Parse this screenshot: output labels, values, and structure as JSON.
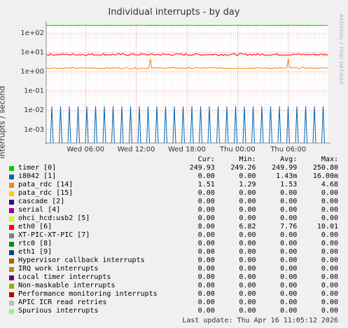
{
  "title": "Individual interrupts - by day",
  "ylabel": "interrupts / second",
  "watermark": "RRDTOOL / TOBI OETIKER",
  "legend_headers": {
    "cur": "Cur:",
    "min": "Min:",
    "avg": "Avg:",
    "max": "Max:"
  },
  "last_update": "Last update: Thu Apr 16 11:05:12 2026",
  "chart_data": {
    "type": "line",
    "title": "Individual interrupts - by day",
    "ylabel": "interrupts / second",
    "yscale": "log",
    "ylim": [
      0.0002,
      300
    ],
    "yticks": [
      "1e+02",
      "1e+01",
      "1e+00",
      "1e-01",
      "1e-02",
      "1e-03"
    ],
    "yticks_values": [
      100,
      10,
      1,
      0.1,
      0.01,
      0.001
    ],
    "xticks": [
      "Wed 06:00",
      "Wed 12:00",
      "Wed 18:00",
      "Thu 00:00",
      "Thu 06:00"
    ],
    "grid": true,
    "series": [
      {
        "name": "timer [0]",
        "color": "#00cc00",
        "cur": "249.93",
        "min": "249.26",
        "avg": "249.99",
        "max": "250.80",
        "level": 250
      },
      {
        "name": "i8042 [1]",
        "color": "#0066b3",
        "cur": "0.00",
        "min": "0.00",
        "avg": "1.43m",
        "max": "16.00m",
        "level": 0.016
      },
      {
        "name": "pata_rdc [14]",
        "color": "#ff8000",
        "cur": "1.51",
        "min": "1.29",
        "avg": "1.53",
        "max": "4.68",
        "level": 1.53
      },
      {
        "name": "pata_rdc [15]",
        "color": "#ffcc00",
        "cur": "0.00",
        "min": "0.00",
        "avg": "0.00",
        "max": "0.00"
      },
      {
        "name": "cascade [2]",
        "color": "#330099",
        "cur": "0.00",
        "min": "0.00",
        "avg": "0.00",
        "max": "0.00"
      },
      {
        "name": "serial [4]",
        "color": "#990099",
        "cur": "0.00",
        "min": "0.00",
        "avg": "0.00",
        "max": "0.00"
      },
      {
        "name": "ohci_hcd:usb2 [5]",
        "color": "#ccff00",
        "cur": "0.00",
        "min": "0.00",
        "avg": "0.00",
        "max": "0.00"
      },
      {
        "name": "eth0 [6]",
        "color": "#ff0000",
        "cur": "8.00",
        "min": "6.82",
        "avg": "7.76",
        "max": "10.01",
        "level": 7.76
      },
      {
        "name": "XT-PIC-XT-PIC [7]",
        "color": "#808080",
        "cur": "0.00",
        "min": "0.00",
        "avg": "0.00",
        "max": "0.00"
      },
      {
        "name": "rtc0 [8]",
        "color": "#008f00",
        "cur": "0.00",
        "min": "0.00",
        "avg": "0.00",
        "max": "0.00"
      },
      {
        "name": "eth1 [9]",
        "color": "#00487d",
        "cur": "0.00",
        "min": "0.00",
        "avg": "0.00",
        "max": "0.00"
      },
      {
        "name": "Hypervisor callback interrupts",
        "color": "#b35a00",
        "cur": "0.00",
        "min": "0.00",
        "avg": "0.00",
        "max": "0.00"
      },
      {
        "name": "IRQ work interrupts",
        "color": "#b38f00",
        "cur": "0.00",
        "min": "0.00",
        "avg": "0.00",
        "max": "0.00"
      },
      {
        "name": "Local timer interrupts",
        "color": "#6b006b",
        "cur": "0.00",
        "min": "0.00",
        "avg": "0.00",
        "max": "0.00"
      },
      {
        "name": "Non-maskable interrupts",
        "color": "#8fb300",
        "cur": "0.00",
        "min": "0.00",
        "avg": "0.00",
        "max": "0.00"
      },
      {
        "name": "Performance monitoring interrupts",
        "color": "#b30000",
        "cur": "0.00",
        "min": "0.00",
        "avg": "0.00",
        "max": "0.00"
      },
      {
        "name": "APIC ICR read retries",
        "color": "#bebebe",
        "cur": "0.00",
        "min": "0.00",
        "avg": "0.00",
        "max": "0.00"
      },
      {
        "name": "Spurious interrupts",
        "color": "#80ff80",
        "cur": "0.00",
        "min": "0.00",
        "avg": "0.00",
        "max": "0.00"
      }
    ]
  }
}
